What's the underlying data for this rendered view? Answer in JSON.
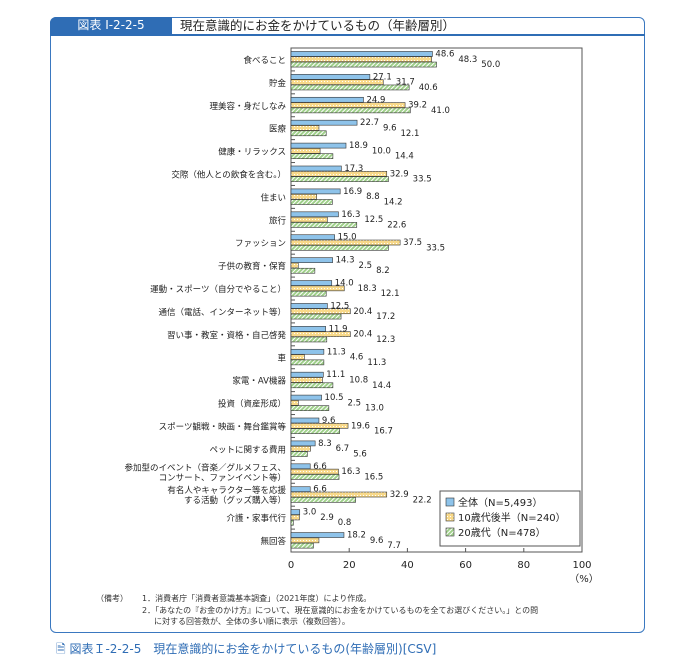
{
  "header": {
    "figure_number": "図表 I-2-2-5",
    "title": "現在意識的にお金をかけているもの（年齢層別）"
  },
  "chart_data": {
    "type": "bar",
    "orientation": "horizontal",
    "title": "現在意識的にお金をかけているもの（年齢層別）",
    "xlabel": "（%）",
    "xlim": [
      0,
      100
    ],
    "xticks": [
      0,
      20,
      40,
      60,
      80,
      100
    ],
    "grid": false,
    "legend_position": "bottom-right",
    "categories": [
      "食べること",
      "貯金",
      "理美容・身だしなみ",
      "医療",
      "健康・リラックス",
      "交際（他人との飲食を含む。）",
      "住まい",
      "旅行",
      "ファッション",
      "子供の教育・保育",
      "運動・スポーツ（自分でやること）",
      "通信（電話、インターネット等）",
      "習い事・教室・資格・自己啓発",
      "車",
      "家電・AV機器",
      "投資（資産形成）",
      "スポーツ観戦・映画・舞台鑑賞等",
      "ペットに関する費用",
      "参加型のイベント（音楽／グルメフェス、\nコンサート、ファンイベント等）",
      "有名人やキャラクター等を応援\nする活動（グッズ購入等）",
      "介護・家事代行",
      "無回答"
    ],
    "series": [
      {
        "name": "全体（N=5,493）",
        "color": "#8ec3ea",
        "pattern": "solid",
        "values": [
          48.6,
          27.1,
          24.9,
          22.7,
          18.9,
          17.3,
          16.9,
          16.3,
          15.0,
          14.3,
          14.0,
          12.5,
          11.9,
          11.3,
          11.1,
          10.5,
          9.6,
          8.3,
          6.6,
          6.6,
          3.0,
          18.2
        ]
      },
      {
        "name": "10歳代後半（N=240）",
        "color": "#f8d98a",
        "pattern": "dots",
        "values": [
          48.3,
          31.7,
          39.2,
          9.6,
          10.0,
          32.9,
          8.8,
          12.5,
          37.5,
          2.5,
          18.3,
          20.4,
          20.4,
          4.6,
          10.8,
          2.5,
          19.6,
          6.7,
          16.3,
          32.9,
          2.9,
          9.6
        ]
      },
      {
        "name": "20歳代（N=478）",
        "color": "#9fd08a",
        "pattern": "hatch",
        "values": [
          50.0,
          40.6,
          41.0,
          12.1,
          14.4,
          33.5,
          14.2,
          22.6,
          33.5,
          8.2,
          12.1,
          17.2,
          12.3,
          11.3,
          14.4,
          13.0,
          16.7,
          5.6,
          16.5,
          22.2,
          0.8,
          7.7
        ]
      }
    ]
  },
  "notes": {
    "label": "（備考）",
    "items": [
      "1．消費者庁「消費者意識基本調査」（2021年度）により作成。",
      "2．「あなたの『お金のかけ方』について、現在意識的にお金をかけているものを全てお選びください。」との問",
      "に対する回答数が、全体の多い順に表示（複数回答）。"
    ]
  },
  "csv_link": {
    "label": "図表Ｉ-2-2-5　現在意識的にお金をかけているもの(年齢層別)[CSV]",
    "icon": "document-icon"
  }
}
